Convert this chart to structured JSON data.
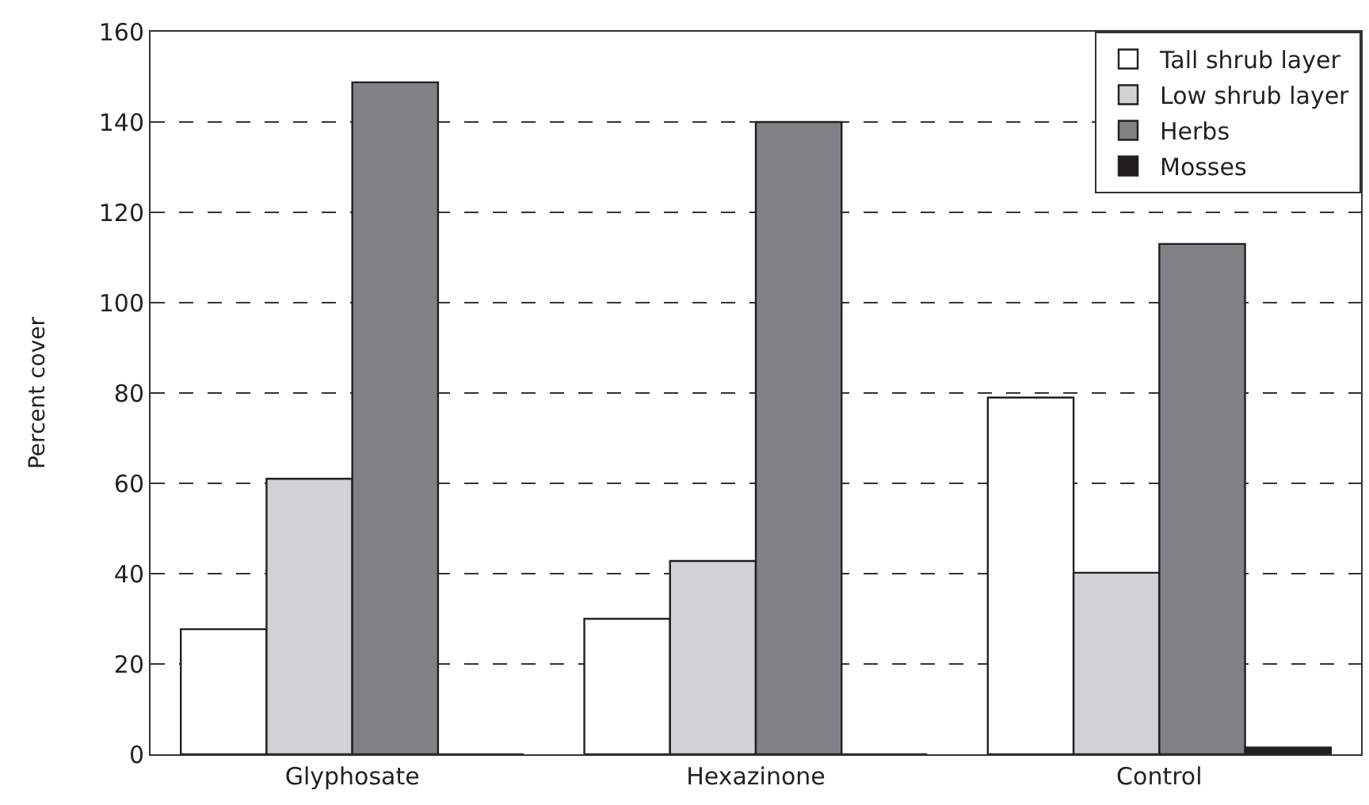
{
  "chart_data": {
    "type": "bar",
    "ylabel": "Percent cover",
    "categories": [
      "Glyphosate",
      "Hexazinone",
      "Control"
    ],
    "series": [
      {
        "name": "Tall shrub layer",
        "color": "#ffffff",
        "values": [
          27.7,
          30,
          79
        ]
      },
      {
        "name": "Low shrub layer",
        "color": "#d1d2d4",
        "values": [
          61,
          42.8,
          40.2
        ]
      },
      {
        "name": "Herbs",
        "color": "#808184",
        "values": [
          148.8,
          140,
          113
        ]
      },
      {
        "name": "Mosses",
        "color": "#231f20",
        "values": [
          0,
          0,
          1.5
        ]
      }
    ],
    "ylim": [
      0,
      160
    ],
    "yticks": [
      0,
      20,
      40,
      60,
      80,
      100,
      120,
      140,
      160
    ],
    "grid": "y",
    "legend": "top right"
  }
}
